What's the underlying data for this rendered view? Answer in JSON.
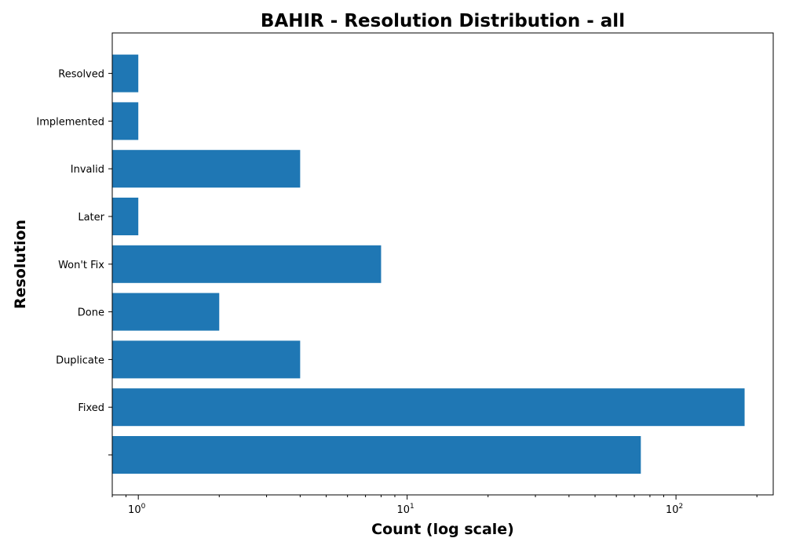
{
  "chart_data": {
    "type": "bar",
    "orientation": "horizontal",
    "title": "BAHIR - Resolution Distribution - all",
    "xlabel": "Count (log scale)",
    "ylabel": "Resolution",
    "x_scale": "log",
    "xlim": [
      0.8,
      230
    ],
    "x_ticks": [
      {
        "base": "10",
        "exp": "0",
        "value": 1
      },
      {
        "base": "10",
        "exp": "1",
        "value": 10
      },
      {
        "base": "10",
        "exp": "2",
        "value": 100
      }
    ],
    "categories": [
      "",
      "Fixed",
      "Duplicate",
      "Done",
      "Won't Fix",
      "Later",
      "Invalid",
      "Implemented",
      "Resolved"
    ],
    "values": [
      74,
      180,
      4,
      2,
      8,
      1,
      4,
      1,
      1
    ],
    "bar_color": "#1f77b4",
    "grid": false,
    "legend": "none"
  }
}
